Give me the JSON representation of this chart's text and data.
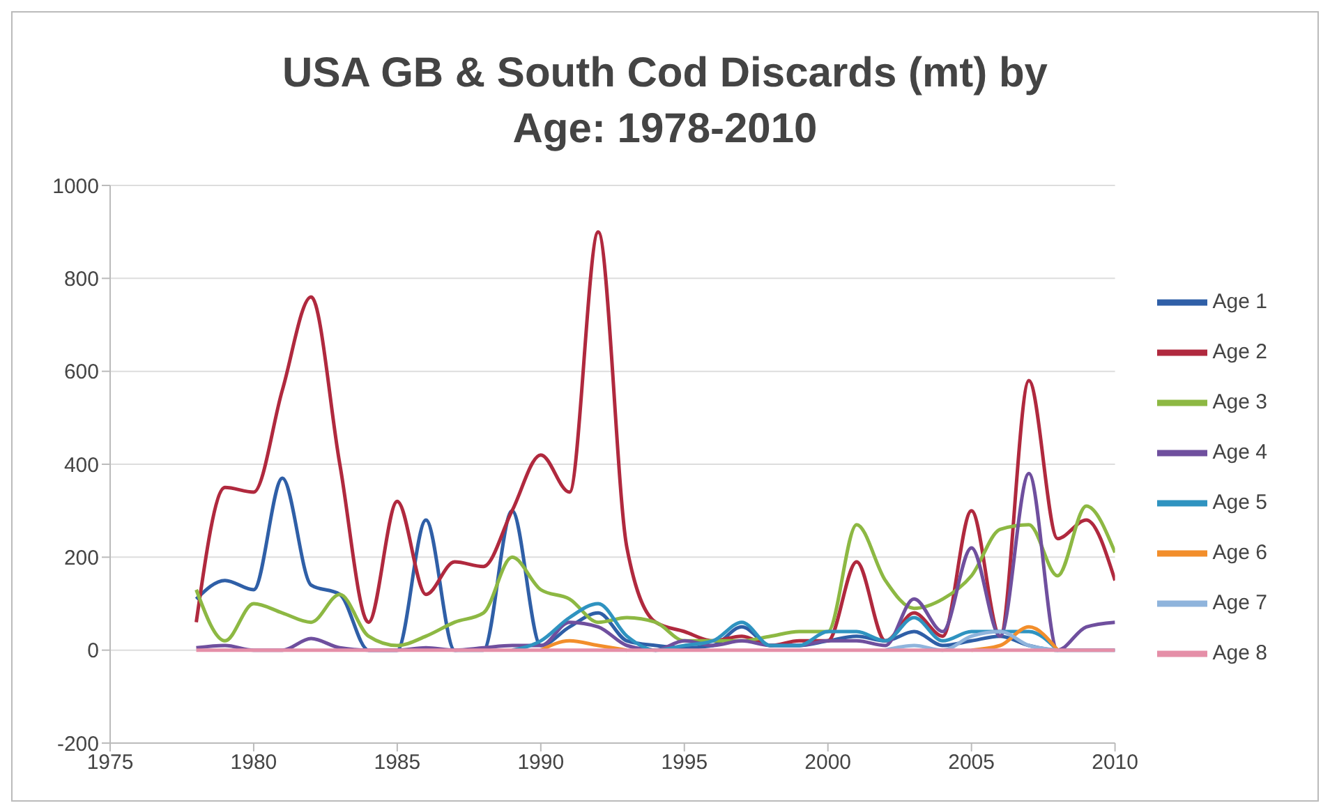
{
  "chart_data": {
    "type": "line",
    "title": "USA GB & South Cod Discards (mt) by Age: 1978-2010",
    "x": [
      1978,
      1979,
      1980,
      1981,
      1982,
      1983,
      1984,
      1985,
      1986,
      1987,
      1988,
      1989,
      1990,
      1991,
      1992,
      1993,
      1994,
      1995,
      1996,
      1997,
      1998,
      1999,
      2000,
      2001,
      2002,
      2003,
      2004,
      2005,
      2006,
      2007,
      2008,
      2009,
      2010
    ],
    "series": [
      {
        "name": "Age 1",
        "color": "#2f5fa7",
        "values": [
          110,
          150,
          130,
          370,
          140,
          120,
          0,
          0,
          280,
          0,
          0,
          300,
          10,
          50,
          80,
          20,
          10,
          5,
          10,
          50,
          10,
          10,
          20,
          30,
          20,
          40,
          10,
          20,
          30,
          10,
          0,
          0,
          0
        ]
      },
      {
        "name": "Age 2",
        "color": "#b0293e",
        "values": [
          60,
          350,
          340,
          560,
          760,
          400,
          60,
          320,
          120,
          190,
          180,
          300,
          420,
          340,
          900,
          220,
          60,
          40,
          20,
          30,
          10,
          20,
          20,
          190,
          20,
          80,
          30,
          300,
          30,
          580,
          240,
          280,
          150
        ]
      },
      {
        "name": "Age 3",
        "color": "#8db843",
        "values": [
          130,
          20,
          100,
          80,
          60,
          120,
          30,
          10,
          30,
          60,
          80,
          200,
          130,
          110,
          60,
          70,
          60,
          20,
          20,
          20,
          30,
          40,
          40,
          270,
          150,
          90,
          110,
          160,
          260,
          270,
          160,
          310,
          210
        ]
      },
      {
        "name": "Age 4",
        "color": "#6f4f9e",
        "values": [
          5,
          10,
          0,
          0,
          25,
          5,
          0,
          0,
          5,
          0,
          5,
          10,
          10,
          60,
          50,
          10,
          0,
          20,
          10,
          20,
          10,
          10,
          20,
          20,
          10,
          110,
          40,
          220,
          30,
          380,
          0,
          50,
          60
        ]
      },
      {
        "name": "Age 5",
        "color": "#2f93c0",
        "values": [
          null,
          null,
          null,
          null,
          null,
          null,
          null,
          null,
          null,
          null,
          null,
          0,
          20,
          70,
          100,
          30,
          0,
          10,
          20,
          60,
          10,
          10,
          40,
          40,
          20,
          70,
          20,
          40,
          40,
          40,
          0,
          null,
          null
        ]
      },
      {
        "name": "Age 6",
        "color": "#f28e2b",
        "values": [
          null,
          null,
          null,
          null,
          null,
          null,
          null,
          null,
          null,
          null,
          null,
          null,
          0,
          20,
          10,
          0,
          null,
          null,
          null,
          null,
          null,
          null,
          null,
          null,
          null,
          null,
          null,
          0,
          10,
          50,
          0,
          null,
          null
        ]
      },
      {
        "name": "Age 7",
        "color": "#8fb4dc",
        "values": [
          null,
          null,
          null,
          null,
          null,
          null,
          null,
          null,
          null,
          null,
          null,
          null,
          null,
          null,
          null,
          null,
          null,
          null,
          null,
          null,
          null,
          null,
          null,
          null,
          0,
          10,
          0,
          30,
          40,
          10,
          0,
          null,
          null
        ]
      },
      {
        "name": "Age 8",
        "color": "#e58fa8",
        "values": [
          0,
          0,
          0,
          0,
          0,
          0,
          0,
          0,
          0,
          0,
          0,
          0,
          0,
          0,
          0,
          0,
          0,
          0,
          0,
          0,
          0,
          0,
          0,
          0,
          0,
          0,
          0,
          0,
          0,
          0,
          0,
          0,
          0
        ]
      }
    ],
    "xlim": [
      1975,
      2010
    ],
    "xticks": [
      1975,
      1980,
      1985,
      1990,
      1995,
      2000,
      2005,
      2010
    ],
    "ylim": [
      -200,
      1000
    ],
    "yticks": [
      -200,
      0,
      200,
      400,
      600,
      800,
      1000
    ],
    "grid": "y",
    "legend": "right",
    "marker": "none",
    "line_style": "solid"
  }
}
